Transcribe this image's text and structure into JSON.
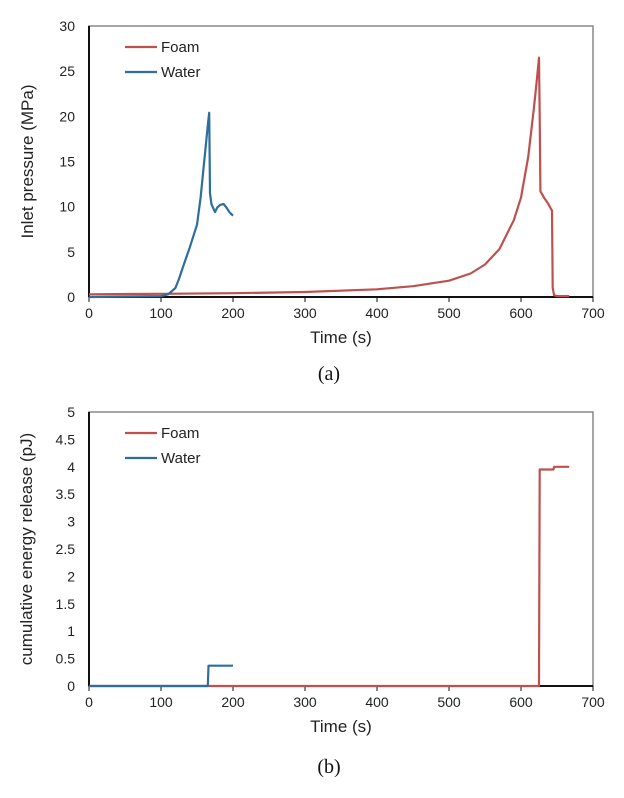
{
  "colors": {
    "foam": "#C0504D",
    "water": "#2E6E9E"
  },
  "chart_data": [
    {
      "type": "line",
      "caption": "(a)",
      "xlabel": "Time (s)",
      "ylabel": "Inlet pressure (MPa)",
      "xlim": [
        0,
        700
      ],
      "ylim": [
        0,
        30
      ],
      "xticks": [
        0,
        100,
        200,
        300,
        400,
        500,
        600,
        700
      ],
      "yticks": [
        0,
        5,
        10,
        15,
        20,
        25,
        30
      ],
      "legend": "top-left",
      "series": [
        {
          "name": "Foam",
          "color": "#C0504D",
          "x": [
            0,
            100,
            200,
            300,
            400,
            450,
            500,
            530,
            550,
            570,
            590,
            600,
            610,
            618,
            622,
            625,
            626,
            627,
            632,
            638,
            642,
            643,
            644,
            646,
            650,
            667
          ],
          "y": [
            0.3,
            0.35,
            0.42,
            0.55,
            0.85,
            1.2,
            1.8,
            2.6,
            3.6,
            5.3,
            8.5,
            11,
            15.5,
            21,
            24,
            26.5,
            20,
            11.7,
            11,
            10.3,
            9.7,
            9.6,
            1,
            0.2,
            0.1,
            0.1
          ]
        },
        {
          "name": "Water",
          "color": "#2E6E9E",
          "x": [
            0,
            100,
            110,
            120,
            125,
            130,
            140,
            150,
            155,
            160,
            165,
            167,
            168,
            170,
            175,
            178,
            182,
            187,
            191,
            195,
            200
          ],
          "y": [
            0,
            0.1,
            0.3,
            1,
            2,
            3.2,
            5.5,
            8,
            11,
            15,
            19,
            20.4,
            11.5,
            10.3,
            9.4,
            9.9,
            10.2,
            10.3,
            9.9,
            9.4,
            9.0
          ]
        }
      ]
    },
    {
      "type": "line",
      "caption": "(b)",
      "xlabel": "Time (s)",
      "ylabel": "cumulative energy release (pJ)",
      "xlim": [
        0,
        700
      ],
      "ylim": [
        0,
        5
      ],
      "xticks": [
        0,
        100,
        200,
        300,
        400,
        500,
        600,
        700
      ],
      "yticks": [
        0,
        0.5,
        1,
        1.5,
        2,
        2.5,
        3,
        3.5,
        4,
        4.5,
        5
      ],
      "legend": "top-left",
      "series": [
        {
          "name": "Foam",
          "color": "#C0504D",
          "x": [
            0,
            625,
            626,
            645,
            646,
            667
          ],
          "y": [
            0,
            0,
            3.95,
            3.95,
            4.0,
            4.0
          ]
        },
        {
          "name": "Water",
          "color": "#2E6E9E",
          "x": [
            0,
            165,
            166,
            200
          ],
          "y": [
            0,
            0,
            0.37,
            0.37
          ]
        }
      ]
    }
  ]
}
